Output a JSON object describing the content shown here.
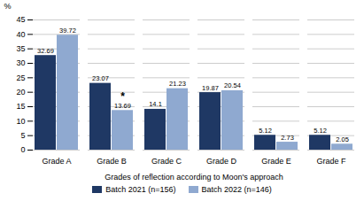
{
  "chart_data": {
    "type": "bar",
    "categories": [
      "Grade A",
      "Grade B",
      "Grade C",
      "Grade D",
      "Grade E",
      "Grade F"
    ],
    "series": [
      {
        "name": "Batch 2021 (n=156)",
        "color": "#1f3864",
        "values": [
          32.69,
          23.07,
          14.1,
          19.87,
          5.12,
          5.12
        ]
      },
      {
        "name": "Batch 2022 (n=146)",
        "color": "#8fa9d0",
        "values": [
          39.72,
          13.69,
          21.23,
          20.54,
          2.73,
          2.05
        ]
      }
    ],
    "xlabel": "Grades of reflection according to Moon's approach",
    "ylabel": "%",
    "ylim": [
      0,
      45
    ],
    "yticks": [
      0,
      5,
      10,
      15,
      20,
      25,
      30,
      35,
      40,
      45
    ],
    "grid": true,
    "data_labels": true,
    "legend": "bottom",
    "annotations": [
      {
        "text": "*",
        "category": "Grade B",
        "series": "Batch 2022 (n=146)"
      }
    ]
  }
}
